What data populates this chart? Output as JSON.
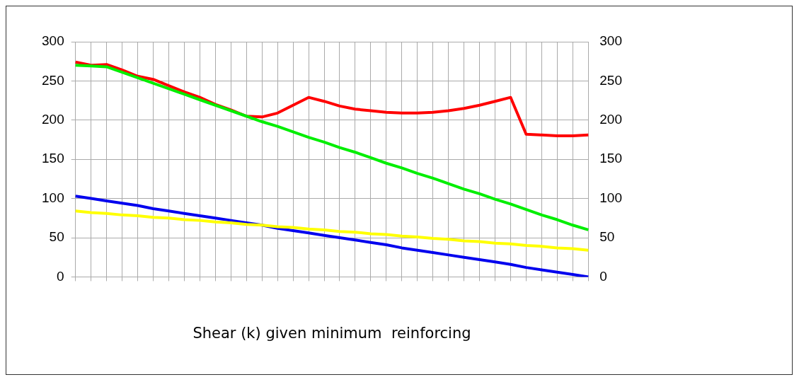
{
  "chart_data": {
    "type": "line",
    "xlabel": "Shear (k) given minimum  reinforcing",
    "categories": [
      null,
      null,
      null,
      null,
      null,
      null,
      null,
      null,
      null,
      null,
      null,
      null,
      null,
      null,
      null,
      null,
      null,
      null,
      null,
      null,
      null,
      null,
      null,
      null,
      null,
      null,
      null,
      null,
      null,
      null,
      null,
      null,
      null,
      null
    ],
    "series": [
      {
        "color": "#00ee00",
        "values": [
          270,
          269,
          268,
          261,
          254,
          247,
          240,
          233,
          226,
          219,
          212,
          205,
          198,
          192,
          185,
          178,
          172,
          165,
          159,
          152,
          145,
          139,
          132,
          126,
          119,
          112,
          106,
          99,
          93,
          86,
          79,
          73,
          66,
          60
        ]
      },
      {
        "color": "#ffff00",
        "values": [
          84,
          82,
          81,
          79,
          78,
          76,
          75,
          73,
          72,
          70,
          69,
          67,
          66,
          64,
          63,
          61,
          60,
          58,
          57,
          55,
          54,
          52,
          51,
          49,
          48,
          46,
          45,
          43,
          42,
          40,
          39,
          37,
          36,
          34
        ]
      },
      {
        "color": "#0000ee",
        "values": [
          103,
          100,
          97,
          94,
          91,
          87,
          84,
          81,
          78,
          75,
          72,
          69,
          66,
          62,
          59,
          56,
          53,
          50,
          47,
          44,
          41,
          37,
          34,
          31,
          28,
          25,
          22,
          19,
          16,
          12,
          9,
          6,
          3,
          0
        ]
      },
      {
        "color": "#ff0000",
        "values": [
          274,
          270,
          271,
          264,
          256,
          252,
          244,
          236,
          229,
          220,
          213,
          205,
          204,
          209,
          219,
          229,
          224,
          218,
          214,
          212,
          210,
          209,
          209,
          210,
          212,
          215,
          219,
          224,
          229,
          182,
          181,
          180,
          180,
          181
        ]
      }
    ],
    "ylim": [
      0,
      300
    ],
    "yticks": [
      0,
      50,
      100,
      150,
      200,
      250,
      300
    ],
    "y2lim": [
      0,
      300
    ],
    "y2ticks": [
      0,
      50,
      100,
      150,
      200,
      250,
      300
    ],
    "grid": true,
    "legend": false,
    "marker": "none",
    "line_style": "solid"
  }
}
